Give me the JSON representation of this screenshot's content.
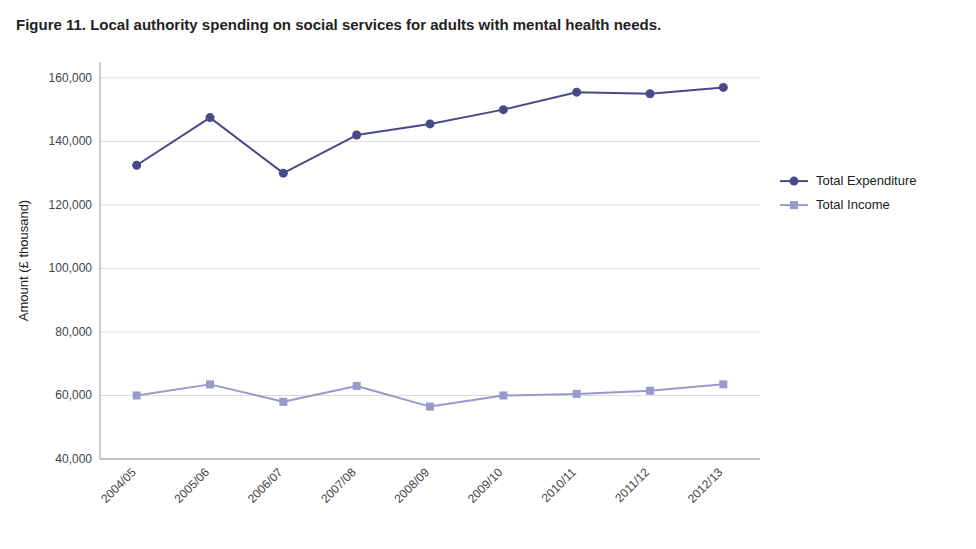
{
  "chart_data": {
    "type": "line",
    "title": "Figure 11. Local authority spending on social services for adults with mental health needs.",
    "y_label": "Amount (£ thousand)",
    "categories": [
      "2004/05",
      "2005/06",
      "2006/07",
      "2007/08",
      "2008/09",
      "2009/10",
      "2010/11",
      "2011/12",
      "2012/13"
    ],
    "series": [
      {
        "name": "Total Expenditure",
        "color": "#4a4a8a",
        "marker": "circle",
        "values": [
          132500,
          147500,
          130000,
          142000,
          145500,
          150000,
          155500,
          155000,
          157000
        ]
      },
      {
        "name": "Total Income",
        "color": "#9999cc",
        "marker": "square",
        "values": [
          60000,
          63500,
          58000,
          63000,
          56500,
          60000,
          60500,
          61500,
          63500
        ]
      }
    ],
    "ylim": [
      40000,
      165000
    ],
    "yticks": [
      {
        "value": 40000,
        "label": "40,000"
      },
      {
        "value": 60000,
        "label": "60,000"
      },
      {
        "value": 80000,
        "label": "80,000"
      },
      {
        "value": 100000,
        "label": "100,000"
      },
      {
        "value": 120000,
        "label": "120,000"
      },
      {
        "value": 140000,
        "label": "140,000"
      },
      {
        "value": 160000,
        "label": "160,000"
      }
    ],
    "grid": true,
    "legend": "right"
  }
}
